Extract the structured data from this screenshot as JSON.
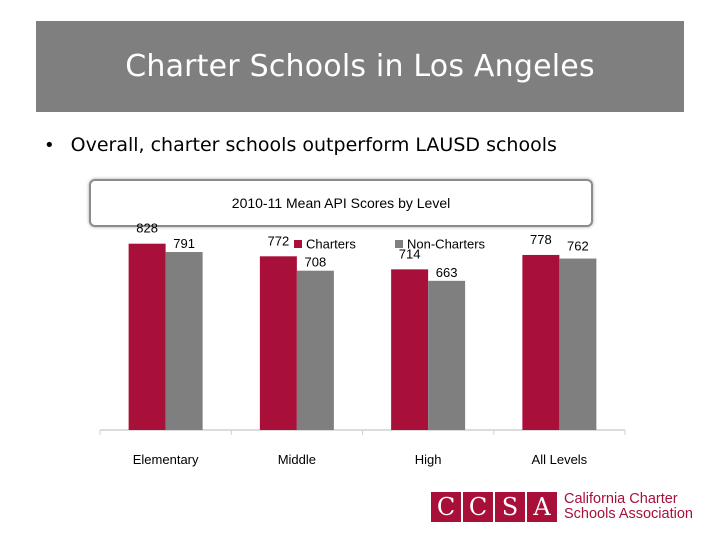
{
  "slide": {
    "title": "Charter Schools in Los Angeles",
    "bullet": "Overall, charter schools outperform LAUSD schools"
  },
  "chart_data": {
    "type": "bar",
    "title": "2010-11 Mean API Scores by Level",
    "categories": [
      "Elementary",
      "Middle",
      "High",
      "All Levels"
    ],
    "series": [
      {
        "name": "Charters",
        "color": "#a8103a",
        "values": [
          828,
          772,
          714,
          778
        ]
      },
      {
        "name": "Non-Charters",
        "color": "#7f7f80",
        "values": [
          791,
          708,
          663,
          762
        ]
      }
    ],
    "ylim": [
      0,
      1000
    ],
    "legend": "top",
    "grid": false
  },
  "logo": {
    "letters": [
      "C",
      "C",
      "S",
      "A"
    ],
    "text_line1": "California Charter",
    "text_line2": "Schools Association",
    "color": "#a8103a"
  }
}
